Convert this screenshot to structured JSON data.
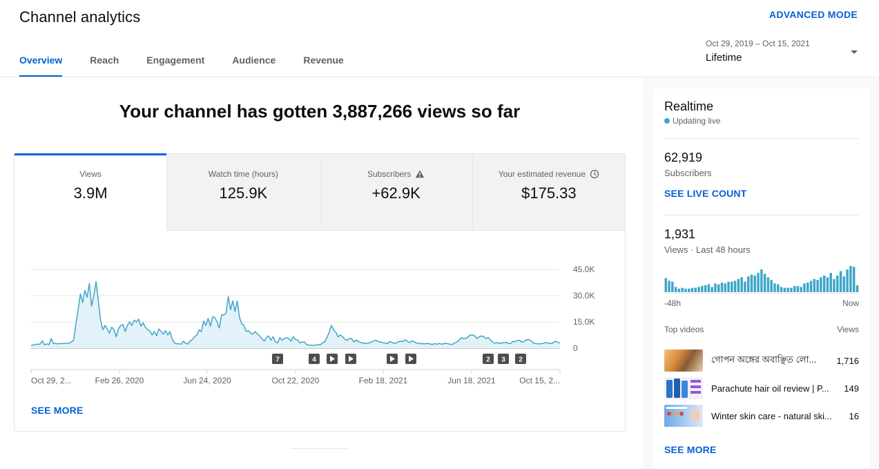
{
  "header": {
    "title": "Channel analytics",
    "advanced_mode": "ADVANCED MODE",
    "tabs": [
      {
        "label": "Overview",
        "active": true
      },
      {
        "label": "Reach"
      },
      {
        "label": "Engagement"
      },
      {
        "label": "Audience"
      },
      {
        "label": "Revenue"
      }
    ],
    "date_picker": {
      "range": "Oct 29, 2019 – Oct 15, 2021",
      "label": "Lifetime"
    }
  },
  "main": {
    "headline": "Your channel has gotten 3,887,266 views so far",
    "metrics": [
      {
        "label": "Views",
        "value": "3.9M",
        "active": true
      },
      {
        "label": "Watch time (hours)",
        "value": "125.9K"
      },
      {
        "label": "Subscribers",
        "value": "+62.9K",
        "icon": "warning-icon"
      },
      {
        "label": "Your estimated revenue",
        "value": "$175.33",
        "icon": "clock-icon"
      }
    ],
    "see_more": "SEE MORE"
  },
  "chart_data": {
    "type": "area",
    "series": [
      {
        "values": [
          1500,
          1800,
          2000,
          2300,
          2200,
          4200,
          1800,
          2400,
          2000,
          5500,
          2600,
          2600,
          2500,
          2600,
          2600,
          2700,
          2800,
          2900,
          3500,
          4500,
          14000,
          22000,
          31000,
          26000,
          33000,
          29000,
          37000,
          24000,
          30000,
          38000,
          27000,
          16000,
          10500,
          13000,
          11000,
          8500,
          12000,
          10500,
          6500,
          11000,
          13000,
          13500,
          9500,
          13000,
          15000,
          13000,
          16000,
          15000,
          16500,
          12500,
          14500,
          12000,
          10500,
          10000,
          7500,
          9500,
          7000,
          11000,
          9500,
          8000,
          10000,
          7500,
          9500,
          5000,
          3000,
          2500,
          2500,
          2200,
          4000,
          2600,
          2400,
          4000,
          5000,
          6500,
          7500,
          10500,
          9500,
          15500,
          13000,
          17000,
          12500,
          18000,
          17500,
          15000,
          11500,
          19000,
          19000,
          20000,
          29500,
          22000,
          27000,
          21000,
          27000,
          17500,
          14000,
          13000,
          9500,
          10000,
          8500,
          8000,
          9500,
          8000,
          7000,
          5500,
          4000,
          6000,
          7000,
          4500,
          6500,
          3500,
          3000,
          6000,
          4500,
          5500,
          6000,
          5500,
          4000,
          6500,
          5000,
          4500,
          3000,
          3500,
          3500,
          2000,
          1700,
          1700,
          1600,
          1700,
          2000,
          1800,
          3000,
          3500,
          6000,
          9000,
          13000,
          10500,
          9000,
          6500,
          7500,
          6500,
          5000,
          4500,
          5500,
          5500,
          3500,
          4500,
          4000,
          3200,
          3000,
          2600,
          2800,
          3000,
          3500,
          4200,
          4500,
          3700,
          3500,
          3000,
          3000,
          2500,
          3800,
          3200,
          2800,
          3000,
          3700,
          3900,
          3800,
          4800,
          3800,
          3200,
          4200,
          3500,
          2900,
          2800,
          2400,
          2600,
          2500,
          2700,
          2400,
          2000,
          2600,
          2200,
          2700,
          2300,
          2500,
          2800,
          2500,
          2300,
          2000,
          3000,
          3500,
          4500,
          6000,
          5500,
          5500,
          6500,
          7500,
          7500,
          7000,
          5500,
          6500,
          7000,
          6500,
          5500,
          6000,
          4500,
          3500,
          2800,
          3200,
          2600,
          3000,
          3100,
          3300,
          2700,
          2600,
          3900,
          3600,
          4400,
          4500,
          3400,
          3800,
          4800,
          4900,
          4400,
          3000,
          2700,
          2500,
          2500,
          2600,
          2900,
          3200,
          2800,
          2600,
          3000,
          4000,
          3200,
          3000
        ]
      }
    ],
    "x_labels": [
      "Oct 29, 2...",
      "Feb 26, 2020",
      "Jun 24, 2020",
      "Oct 22, 2020",
      "Feb 18, 2021",
      "Jun 18, 2021",
      "Oct 15, 2..."
    ],
    "y_ticks": [
      "45.0K",
      "30.0K",
      "15.0K",
      "0"
    ],
    "ylim": [
      0,
      45000
    ],
    "markers": [
      "7",
      "4",
      "play",
      "play",
      "play",
      "play",
      "2",
      "3",
      "2"
    ],
    "colors": {
      "line": "#3ea6c8",
      "fill": "#e3f2f8",
      "accent": "#065fd4"
    }
  },
  "realtime": {
    "title": "Realtime",
    "status": "Updating live",
    "subscribers": {
      "count": "62,919",
      "label": "Subscribers",
      "link": "SEE LIVE COUNT"
    },
    "views": {
      "count": "1,931",
      "label": "Views · Last 48 hours"
    },
    "bars": [
      16,
      13,
      12,
      6,
      4,
      5,
      4,
      4,
      5,
      5,
      6,
      7,
      8,
      9,
      6,
      10,
      9,
      11,
      10,
      12,
      12,
      13,
      15,
      17,
      12,
      18,
      20,
      19,
      22,
      26,
      21,
      17,
      14,
      10,
      9,
      6,
      5,
      5,
      5,
      7,
      7,
      6,
      10,
      11,
      13,
      15,
      14,
      17,
      19,
      17,
      22,
      15,
      19,
      24,
      18,
      26,
      30,
      29,
      8
    ],
    "axis_start": "-48h",
    "axis_end": "Now",
    "top_videos": {
      "header": "Top videos",
      "views_header": "Views",
      "items": [
        {
          "title": "গোপন অঙ্গের অবাঞ্ছিত লো...",
          "views": "1,716"
        },
        {
          "title": "Parachute hair oil review | P...",
          "views": "149"
        },
        {
          "title": "Winter skin care - natural ski...",
          "views": "16"
        }
      ]
    },
    "see_more": "SEE MORE"
  }
}
